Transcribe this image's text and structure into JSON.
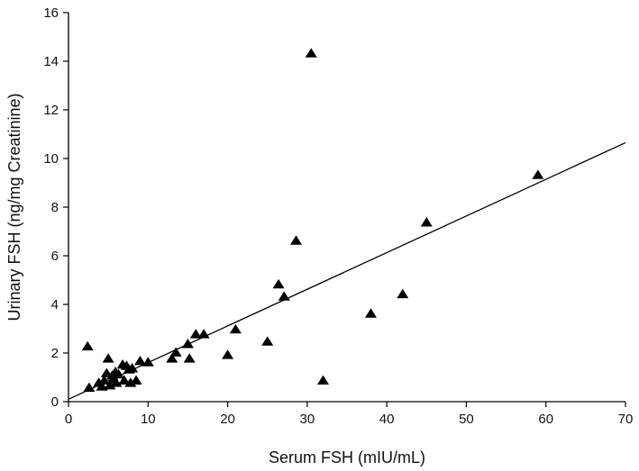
{
  "chart_data": {
    "type": "scatter",
    "title": "",
    "xlabel": "Serum FSH (mIU/mL)",
    "ylabel": "Urinary FSH (ng/mg Creatinine)",
    "xlim": [
      0,
      70
    ],
    "ylim": [
      0,
      16
    ],
    "xticks": [
      0,
      10,
      20,
      30,
      40,
      50,
      60,
      70
    ],
    "yticks": [
      0,
      2,
      4,
      6,
      8,
      10,
      12,
      14,
      16
    ],
    "grid": false,
    "legend": "none",
    "marker": "filled-triangle",
    "marker_color": "#000000",
    "points": [
      {
        "x": 2.4,
        "y": 2.25
      },
      {
        "x": 2.6,
        "y": 0.55
      },
      {
        "x": 3.8,
        "y": 0.75
      },
      {
        "x": 4.2,
        "y": 0.6
      },
      {
        "x": 4.5,
        "y": 0.85
      },
      {
        "x": 4.8,
        "y": 1.15
      },
      {
        "x": 5.0,
        "y": 1.75
      },
      {
        "x": 5.2,
        "y": 0.65
      },
      {
        "x": 5.5,
        "y": 1.05
      },
      {
        "x": 5.7,
        "y": 0.9
      },
      {
        "x": 5.9,
        "y": 1.2
      },
      {
        "x": 6.0,
        "y": 0.75
      },
      {
        "x": 6.3,
        "y": 1.1
      },
      {
        "x": 6.8,
        "y": 1.5
      },
      {
        "x": 7.0,
        "y": 0.85
      },
      {
        "x": 7.3,
        "y": 1.45
      },
      {
        "x": 7.6,
        "y": 1.3
      },
      {
        "x": 7.8,
        "y": 0.75
      },
      {
        "x": 8.0,
        "y": 1.35
      },
      {
        "x": 8.5,
        "y": 0.85
      },
      {
        "x": 9.0,
        "y": 1.65
      },
      {
        "x": 10.0,
        "y": 1.6
      },
      {
        "x": 13.0,
        "y": 1.75
      },
      {
        "x": 13.5,
        "y": 2.0
      },
      {
        "x": 15.0,
        "y": 2.35
      },
      {
        "x": 15.2,
        "y": 1.75
      },
      {
        "x": 16.0,
        "y": 2.75
      },
      {
        "x": 17.0,
        "y": 2.75
      },
      {
        "x": 20.0,
        "y": 1.9
      },
      {
        "x": 21.0,
        "y": 2.95
      },
      {
        "x": 25.0,
        "y": 2.45
      },
      {
        "x": 26.4,
        "y": 4.8
      },
      {
        "x": 27.1,
        "y": 4.3
      },
      {
        "x": 28.6,
        "y": 6.6
      },
      {
        "x": 30.5,
        "y": 14.3
      },
      {
        "x": 32.0,
        "y": 0.85
      },
      {
        "x": 38.0,
        "y": 3.6
      },
      {
        "x": 42.0,
        "y": 4.4
      },
      {
        "x": 45.0,
        "y": 7.35
      },
      {
        "x": 59.0,
        "y": 9.3
      }
    ],
    "regression_line": {
      "x": [
        0,
        70
      ],
      "y": [
        0.1,
        10.65
      ]
    }
  }
}
